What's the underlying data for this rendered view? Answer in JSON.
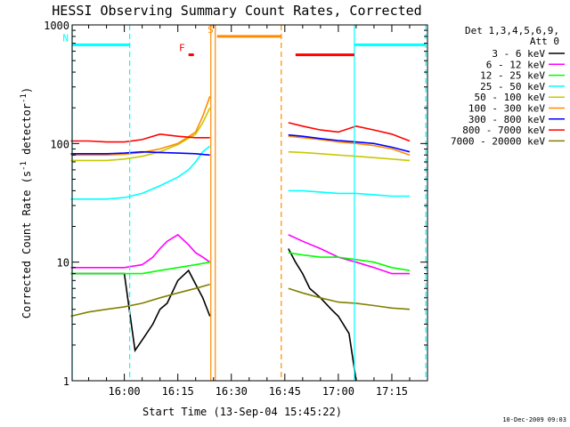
{
  "chart_data": {
    "type": "line",
    "title": "HESSI Observing Summary Count Rates, Corrected",
    "xlabel": "Start Time (13-Sep-04 15:45:22)",
    "ylabel": "Corrected Count Rate (s⁻¹ detector⁻¹)",
    "ylabel_parts": {
      "prefix": "Corrected Count Rate (s",
      "exp1": "-1",
      "mid": " detector",
      "exp2": "-1",
      "suffix": ")"
    },
    "y_scale": "log",
    "ylim": [
      1,
      1000
    ],
    "xlim": [
      "15:45:22",
      "17:25:00"
    ],
    "y_ticks": [
      {
        "value": 1,
        "label": "1"
      },
      {
        "value": 10,
        "label": "10"
      },
      {
        "value": 100,
        "label": "100"
      },
      {
        "value": 1000,
        "label": "1000"
      }
    ],
    "x_ticks": [
      {
        "value": "16:00",
        "label": "16:00"
      },
      {
        "value": "16:15",
        "label": "16:15"
      },
      {
        "value": "16:30",
        "label": "16:30"
      },
      {
        "value": "16:45",
        "label": "16:45"
      },
      {
        "value": "17:00",
        "label": "17:00"
      },
      {
        "value": "17:15",
        "label": "17:15"
      }
    ],
    "legend_header": [
      "Det 1,3,4,5,6,9,",
      "Att 0"
    ],
    "legend_position": "right",
    "series": [
      {
        "name": "3 - 6 keV",
        "color": "#000000",
        "segments": [
          {
            "x": [
              "15:45",
              "15:50",
              "15:55",
              "16:00",
              "16:03",
              "16:05",
              "16:08",
              "16:10",
              "16:12",
              "16:15",
              "16:18",
              "16:20",
              "16:22",
              "16:24"
            ],
            "y": [
              8,
              8,
              8,
              8,
              1.8,
              2.2,
              3,
              4,
              4.5,
              7,
              8.5,
              6.5,
              5,
              3.5
            ]
          },
          {
            "x": [
              "16:46",
              "16:48",
              "16:50",
              "16:52",
              "16:55",
              "16:58",
              "17:00",
              "17:03",
              "17:05"
            ],
            "y": [
              13,
              10,
              8,
              6,
              5,
              4,
              3.5,
              2.5,
              1
            ]
          }
        ]
      },
      {
        "name": "6 - 12 keV",
        "color": "#ff00ff",
        "segments": [
          {
            "x": [
              "15:45",
              "15:50",
              "15:55",
              "16:00",
              "16:05",
              "16:08",
              "16:10",
              "16:12",
              "16:15",
              "16:18",
              "16:20",
              "16:22",
              "16:24"
            ],
            "y": [
              9,
              9,
              9,
              9,
              9.5,
              11,
              13,
              15,
              17,
              14,
              12,
              11,
              10
            ]
          },
          {
            "x": [
              "16:46",
              "16:50",
              "16:55",
              "17:00",
              "17:05",
              "17:10",
              "17:15",
              "17:20"
            ],
            "y": [
              17,
              15,
              13,
              11,
              10,
              9,
              8,
              8
            ]
          }
        ]
      },
      {
        "name": "12 - 25 keV",
        "color": "#00ff00",
        "segments": [
          {
            "x": [
              "15:45",
              "15:50",
              "15:55",
              "16:00",
              "16:05",
              "16:10",
              "16:15",
              "16:20",
              "16:24"
            ],
            "y": [
              8,
              8,
              8,
              8,
              8,
              8.5,
              9,
              9.5,
              10
            ]
          },
          {
            "x": [
              "16:46",
              "16:50",
              "16:55",
              "17:00",
              "17:05",
              "17:10",
              "17:15",
              "17:20"
            ],
            "y": [
              12,
              11.5,
              11,
              11,
              10.5,
              10,
              9,
              8.5
            ]
          }
        ]
      },
      {
        "name": "25 - 50 keV",
        "color": "#00ffff",
        "segments": [
          {
            "x": [
              "15:45",
              "15:50",
              "15:55",
              "16:00",
              "16:05",
              "16:10",
              "16:15",
              "16:18",
              "16:20",
              "16:22",
              "16:24"
            ],
            "y": [
              34,
              34,
              34,
              35,
              38,
              44,
              52,
              60,
              70,
              85,
              95
            ]
          },
          {
            "x": [
              "16:46",
              "16:50",
              "16:55",
              "17:00",
              "17:05",
              "17:10",
              "17:15",
              "17:20"
            ],
            "y": [
              40,
              40,
              39,
              38,
              38,
              37,
              36,
              36
            ]
          }
        ]
      },
      {
        "name": "50 - 100 keV",
        "color": "#c8c800",
        "segments": [
          {
            "x": [
              "15:45",
              "15:50",
              "15:55",
              "16:00",
              "16:05",
              "16:10",
              "16:15",
              "16:20",
              "16:22",
              "16:24"
            ],
            "y": [
              72,
              72,
              72,
              74,
              78,
              85,
              98,
              120,
              150,
              200
            ]
          },
          {
            "x": [
              "16:46",
              "16:50",
              "16:55",
              "17:00",
              "17:05",
              "17:10",
              "17:15",
              "17:20"
            ],
            "y": [
              85,
              84,
              82,
              80,
              78,
              76,
              74,
              72
            ]
          }
        ]
      },
      {
        "name": "100 - 300 keV",
        "color": "#ff8c00",
        "segments": [
          {
            "x": [
              "15:45",
              "15:50",
              "15:55",
              "16:00",
              "16:05",
              "16:10",
              "16:15",
              "16:20",
              "16:22",
              "16:24"
            ],
            "y": [
              80,
              80,
              80,
              81,
              84,
              90,
              100,
              125,
              170,
              250
            ]
          },
          {
            "x": [
              "16:46",
              "16:50",
              "16:55",
              "17:00",
              "17:05",
              "17:10",
              "17:15",
              "17:20"
            ],
            "y": [
              115,
              112,
              108,
              103,
              100,
              96,
              90,
              80
            ]
          }
        ]
      },
      {
        "name": "300 - 800 keV",
        "color": "#0000ff",
        "segments": [
          {
            "x": [
              "15:45",
              "15:50",
              "15:55",
              "16:00",
              "16:05",
              "16:10",
              "16:15",
              "16:20",
              "16:24"
            ],
            "y": [
              82,
              82,
              82,
              83,
              85,
              84,
              83,
              82,
              80
            ]
          },
          {
            "x": [
              "16:46",
              "16:50",
              "16:55",
              "17:00",
              "17:05",
              "17:10",
              "17:15",
              "17:20"
            ],
            "y": [
              118,
              115,
              110,
              106,
              103,
              100,
              93,
              85
            ]
          }
        ]
      },
      {
        "name": "800 - 7000 keV",
        "color": "#ff0000",
        "segments": [
          {
            "x": [
              "15:45",
              "15:50",
              "15:55",
              "16:00",
              "16:05",
              "16:10",
              "16:15",
              "16:20",
              "16:24"
            ],
            "y": [
              105,
              105,
              103,
              103,
              108,
              120,
              115,
              112,
              112
            ]
          },
          {
            "x": [
              "16:46",
              "16:50",
              "16:55",
              "17:00",
              "17:05",
              "17:10",
              "17:15",
              "17:20"
            ],
            "y": [
              150,
              140,
              130,
              125,
              140,
              130,
              120,
              105
            ]
          }
        ]
      },
      {
        "name": "7000 - 20000 keV",
        "color": "#808000",
        "segments": [
          {
            "x": [
              "15:45",
              "15:50",
              "15:55",
              "16:00",
              "16:05",
              "16:10",
              "16:15",
              "16:20",
              "16:24"
            ],
            "y": [
              3.5,
              3.8,
              4,
              4.2,
              4.5,
              5,
              5.5,
              6,
              6.5
            ]
          },
          {
            "x": [
              "16:46",
              "16:50",
              "16:55",
              "17:00",
              "17:05",
              "17:10",
              "17:15",
              "17:20"
            ],
            "y": [
              6,
              5.5,
              5,
              4.6,
              4.5,
              4.3,
              4.1,
              4
            ]
          }
        ]
      }
    ],
    "vertical_lines": [
      {
        "x": "15:45:22",
        "color": "#00ffff",
        "style": "solid"
      },
      {
        "x": "16:01:30",
        "color": "#00ffff",
        "style": "dashed"
      },
      {
        "x": "16:24:15",
        "color": "#ff8c00",
        "style": "solid"
      },
      {
        "x": "16:25:30",
        "color": "#ff8c00",
        "style": "solid"
      },
      {
        "x": "16:44:00",
        "color": "#ff8c00",
        "style": "dashed"
      },
      {
        "x": "17:04:30",
        "color": "#00ffff",
        "style": "solid"
      },
      {
        "x": "17:24:30",
        "color": "#00ffff",
        "style": "dashed"
      }
    ],
    "interval_bars": [
      {
        "label": "N",
        "color": "#00ffff",
        "x_start": "15:45:22",
        "x_end": "16:01:30",
        "y": 680
      },
      {
        "label": "",
        "color": "#00ffff",
        "x_start": "17:04:30",
        "x_end": "17:24:30",
        "y": 680
      },
      {
        "label": "S",
        "color": "#ff8c00",
        "x_start": "16:26:00",
        "x_end": "16:44:00",
        "y": 800
      },
      {
        "label": "F",
        "color": "#ff0000",
        "x_start": "16:18:00",
        "x_end": "16:19:30",
        "y": 560
      },
      {
        "label": "",
        "color": "#ff0000",
        "x_start": "16:48:00",
        "x_end": "17:04:30",
        "y": 560
      }
    ],
    "footer_timestamp": "10-Dec-2009 09:03"
  }
}
